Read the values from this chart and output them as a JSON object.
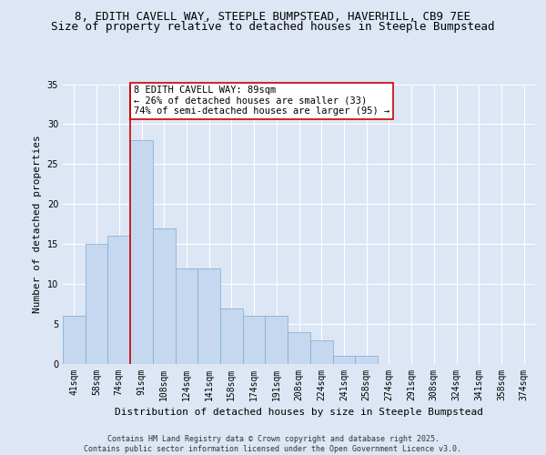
{
  "title1": "8, EDITH CAVELL WAY, STEEPLE BUMPSTEAD, HAVERHILL, CB9 7EE",
  "title2": "Size of property relative to detached houses in Steeple Bumpstead",
  "xlabel": "Distribution of detached houses by size in Steeple Bumpstead",
  "ylabel": "Number of detached properties",
  "categories": [
    "41sqm",
    "58sqm",
    "74sqm",
    "91sqm",
    "108sqm",
    "124sqm",
    "141sqm",
    "158sqm",
    "174sqm",
    "191sqm",
    "208sqm",
    "224sqm",
    "241sqm",
    "258sqm",
    "274sqm",
    "291sqm",
    "308sqm",
    "324sqm",
    "341sqm",
    "358sqm",
    "374sqm"
  ],
  "values": [
    6,
    15,
    16,
    28,
    17,
    12,
    12,
    7,
    6,
    6,
    4,
    3,
    1,
    1,
    0,
    0,
    0,
    0,
    0,
    0,
    0
  ],
  "bar_color": "#c5d8f0",
  "bar_edge_color": "#7aabcf",
  "vline_x_index": 3,
  "vline_color": "#cc0000",
  "ylim": [
    0,
    35
  ],
  "yticks": [
    0,
    5,
    10,
    15,
    20,
    25,
    30,
    35
  ],
  "annotation_text": "8 EDITH CAVELL WAY: 89sqm\n← 26% of detached houses are smaller (33)\n74% of semi-detached houses are larger (95) →",
  "annotation_box_facecolor": "#ffffff",
  "annotation_box_edgecolor": "#cc0000",
  "plot_bg_color": "#dce6f5",
  "fig_bg_color": "#dce6f5",
  "title_fontsize": 9,
  "subtitle_fontsize": 9,
  "ylabel_fontsize": 8,
  "xlabel_fontsize": 8,
  "tick_fontsize": 7,
  "annotation_fontsize": 7.5,
  "footer_fontsize": 6,
  "footer": "Contains HM Land Registry data © Crown copyright and database right 2025.\nContains public sector information licensed under the Open Government Licence v3.0."
}
